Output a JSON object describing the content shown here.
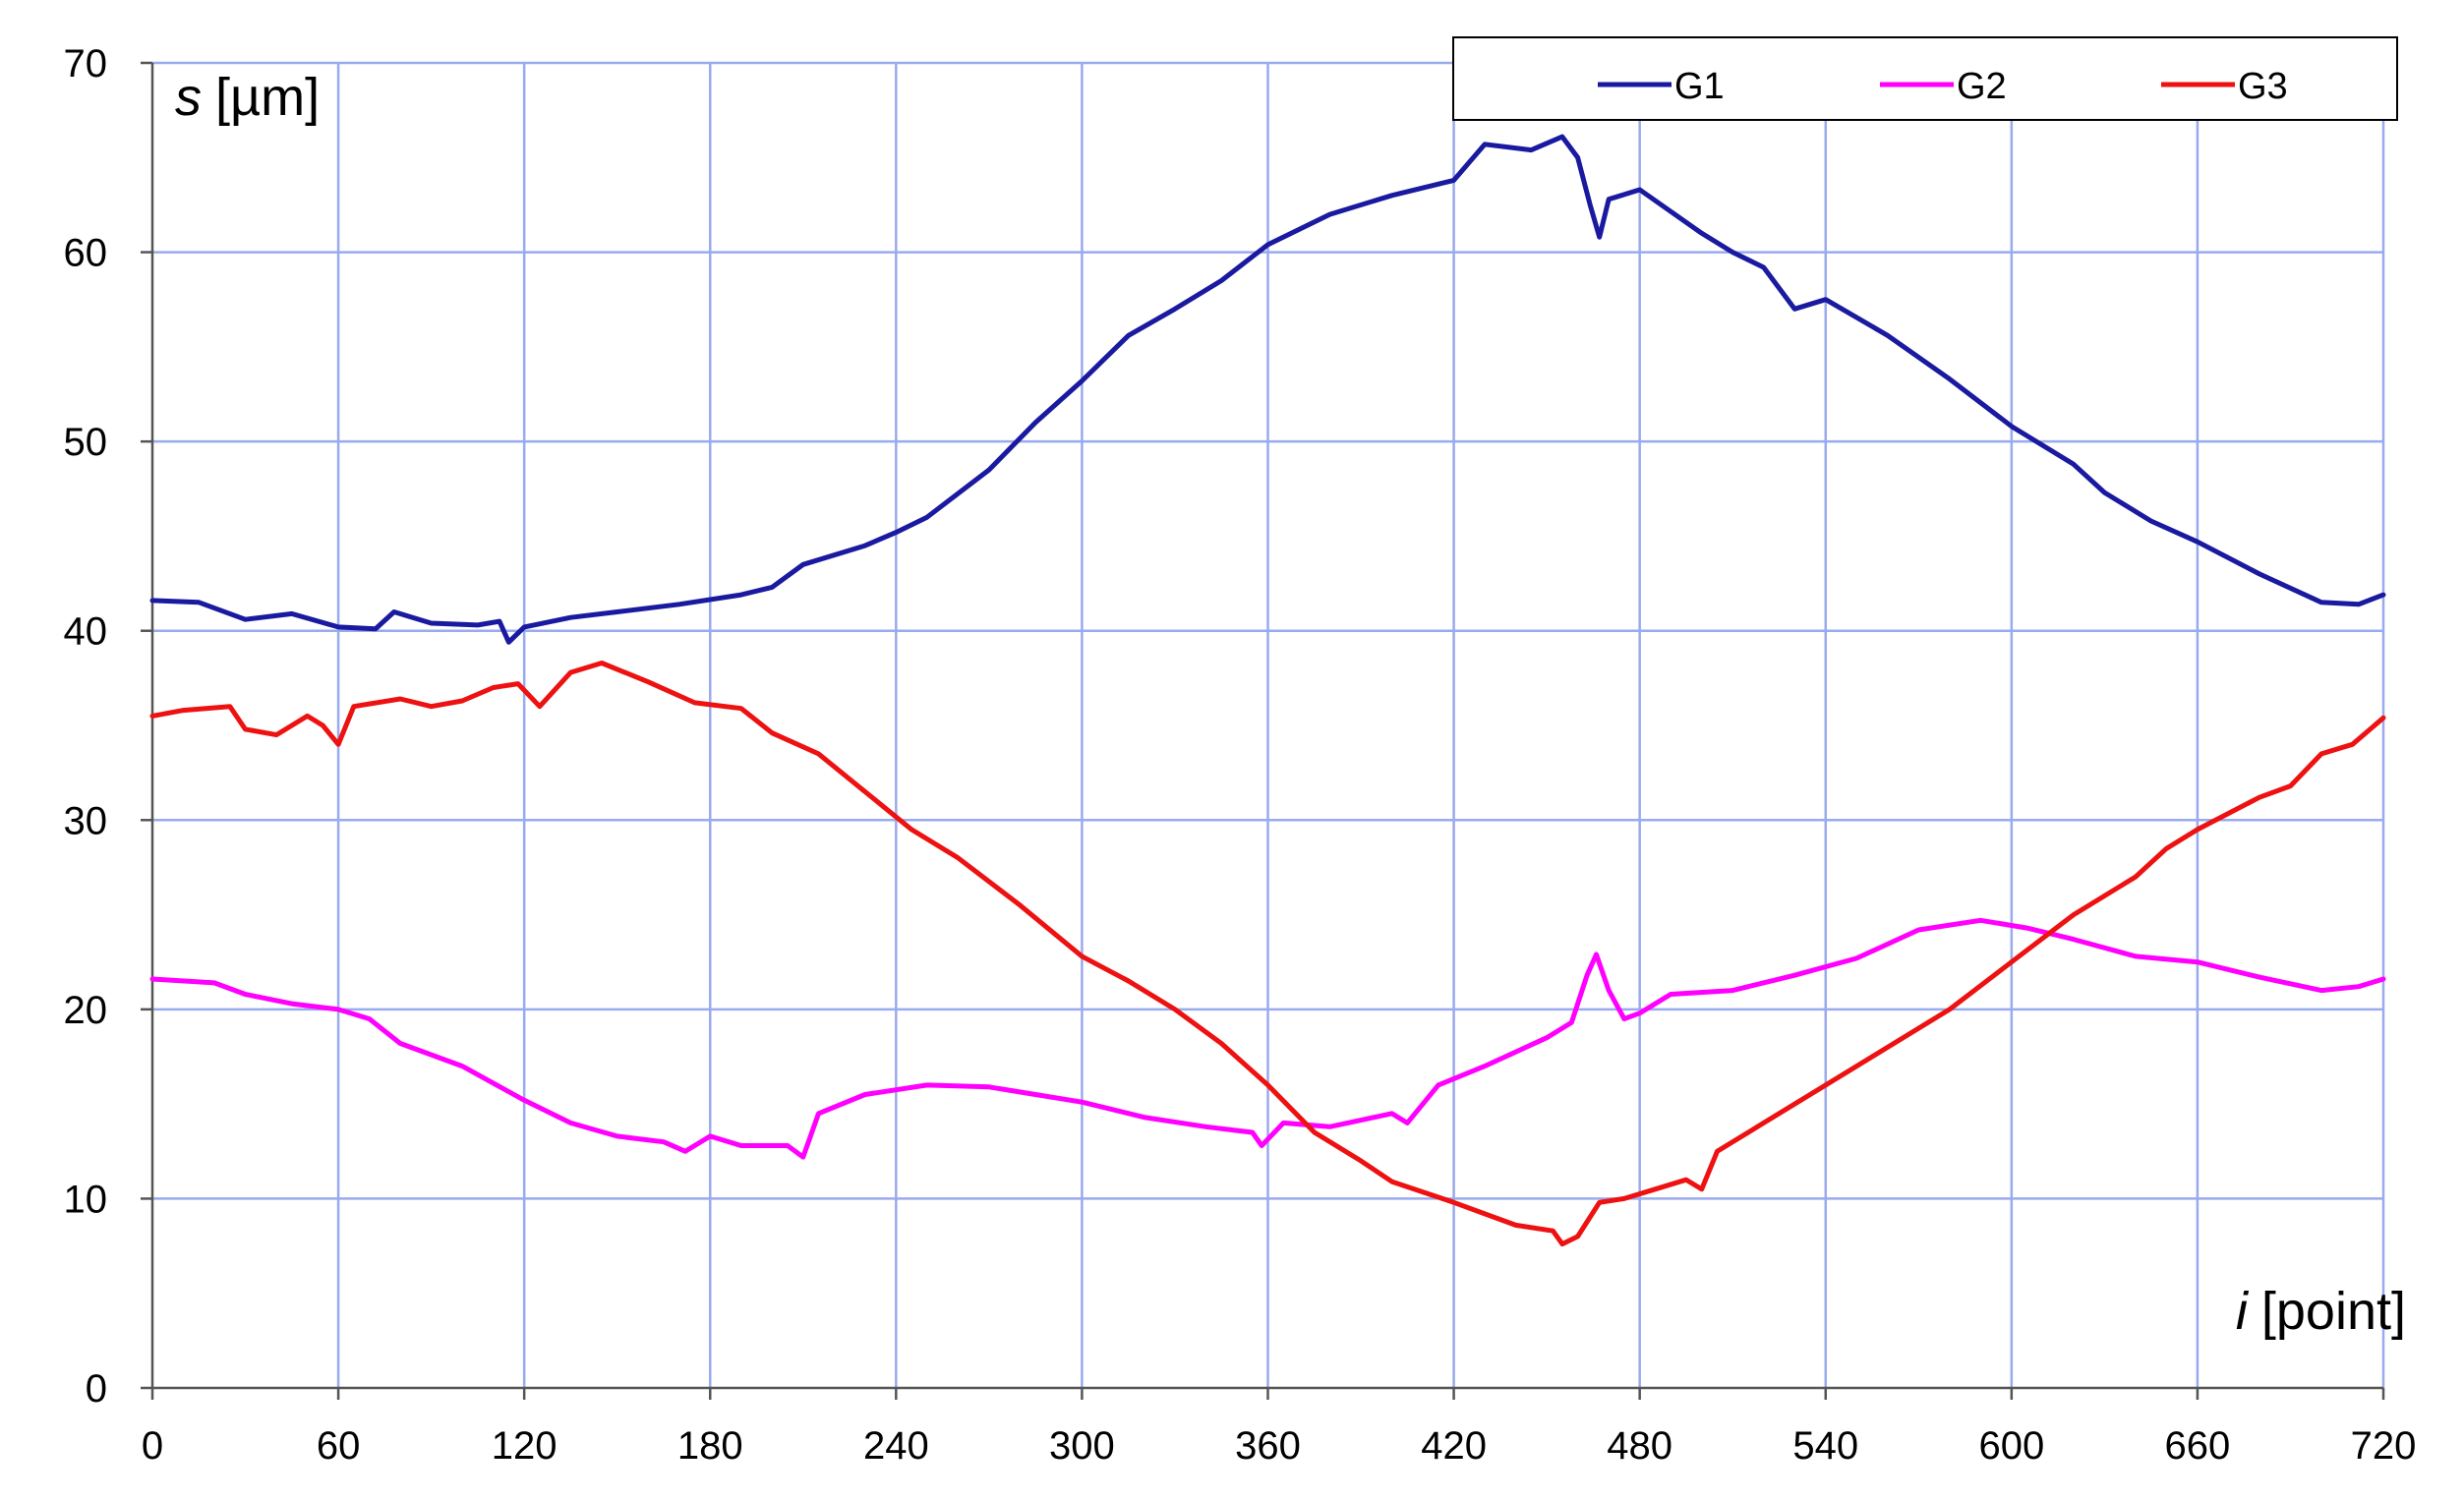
{
  "chart_data": {
    "type": "line",
    "ylabel_var": "s",
    "ylabel_unit": "[µm]",
    "xlabel_var": "i",
    "xlabel_unit": "[point]",
    "xlim": [
      0,
      720
    ],
    "ylim": [
      0,
      70
    ],
    "xticks": [
      0,
      60,
      120,
      180,
      240,
      300,
      360,
      420,
      480,
      540,
      600,
      660,
      720
    ],
    "yticks": [
      0,
      10,
      20,
      30,
      40,
      50,
      60,
      70
    ],
    "grid": true,
    "grid_color": "#99aaee",
    "legend_position": "top-right",
    "series": [
      {
        "name": "G1",
        "color": "#1a1aa0",
        "points": [
          [
            0,
            41.6
          ],
          [
            15,
            41.5
          ],
          [
            30,
            40.6
          ],
          [
            45,
            40.9
          ],
          [
            60,
            40.2
          ],
          [
            72,
            40.1
          ],
          [
            78,
            41.0
          ],
          [
            90,
            40.4
          ],
          [
            105,
            40.3
          ],
          [
            112,
            40.5
          ],
          [
            115,
            39.4
          ],
          [
            120,
            40.2
          ],
          [
            135,
            40.7
          ],
          [
            150,
            41.0
          ],
          [
            170,
            41.4
          ],
          [
            190,
            41.9
          ],
          [
            200,
            42.3
          ],
          [
            210,
            43.5
          ],
          [
            230,
            44.5
          ],
          [
            240,
            45.2
          ],
          [
            250,
            46.0
          ],
          [
            270,
            48.5
          ],
          [
            285,
            51.0
          ],
          [
            300,
            53.2
          ],
          [
            315,
            55.6
          ],
          [
            330,
            57.0
          ],
          [
            345,
            58.5
          ],
          [
            360,
            60.4
          ],
          [
            380,
            62.0
          ],
          [
            400,
            63.0
          ],
          [
            420,
            63.8
          ],
          [
            430,
            65.7
          ],
          [
            445,
            65.4
          ],
          [
            455,
            66.1
          ],
          [
            460,
            65.0
          ],
          [
            464,
            62.5
          ],
          [
            467,
            60.8
          ],
          [
            470,
            62.8
          ],
          [
            480,
            63.3
          ],
          [
            500,
            61.0
          ],
          [
            510,
            60.0
          ],
          [
            520,
            59.2
          ],
          [
            530,
            57.0
          ],
          [
            540,
            57.5
          ],
          [
            560,
            55.6
          ],
          [
            580,
            53.3
          ],
          [
            600,
            50.8
          ],
          [
            620,
            48.8
          ],
          [
            630,
            47.3
          ],
          [
            645,
            45.8
          ],
          [
            660,
            44.7
          ],
          [
            680,
            43.0
          ],
          [
            700,
            41.5
          ],
          [
            712,
            41.4
          ],
          [
            720,
            41.9
          ]
        ]
      },
      {
        "name": "G2",
        "color": "#ff00ff",
        "points": [
          [
            0,
            21.6
          ],
          [
            20,
            21.4
          ],
          [
            30,
            20.8
          ],
          [
            45,
            20.3
          ],
          [
            60,
            20.0
          ],
          [
            70,
            19.5
          ],
          [
            80,
            18.2
          ],
          [
            100,
            17.0
          ],
          [
            120,
            15.2
          ],
          [
            135,
            14.0
          ],
          [
            150,
            13.3
          ],
          [
            165,
            13.0
          ],
          [
            172,
            12.5
          ],
          [
            180,
            13.3
          ],
          [
            190,
            12.8
          ],
          [
            205,
            12.8
          ],
          [
            210,
            12.2
          ],
          [
            215,
            14.5
          ],
          [
            230,
            15.5
          ],
          [
            250,
            16.0
          ],
          [
            270,
            15.9
          ],
          [
            285,
            15.5
          ],
          [
            300,
            15.1
          ],
          [
            320,
            14.3
          ],
          [
            340,
            13.8
          ],
          [
            355,
            13.5
          ],
          [
            358,
            12.8
          ],
          [
            365,
            14.0
          ],
          [
            380,
            13.8
          ],
          [
            400,
            14.5
          ],
          [
            405,
            14.0
          ],
          [
            415,
            16.0
          ],
          [
            430,
            17.0
          ],
          [
            450,
            18.5
          ],
          [
            458,
            19.3
          ],
          [
            463,
            21.8
          ],
          [
            466,
            22.9
          ],
          [
            470,
            21.0
          ],
          [
            475,
            19.5
          ],
          [
            480,
            19.8
          ],
          [
            490,
            20.8
          ],
          [
            510,
            21.0
          ],
          [
            530,
            21.8
          ],
          [
            550,
            22.7
          ],
          [
            570,
            24.2
          ],
          [
            590,
            24.7
          ],
          [
            605,
            24.3
          ],
          [
            620,
            23.7
          ],
          [
            640,
            22.8
          ],
          [
            660,
            22.5
          ],
          [
            680,
            21.7
          ],
          [
            700,
            21.0
          ],
          [
            712,
            21.2
          ],
          [
            720,
            21.6
          ]
        ]
      },
      {
        "name": "G3",
        "color": "#ee1111",
        "points": [
          [
            0,
            35.5
          ],
          [
            10,
            35.8
          ],
          [
            25,
            36.0
          ],
          [
            30,
            34.8
          ],
          [
            40,
            34.5
          ],
          [
            50,
            35.5
          ],
          [
            55,
            35.0
          ],
          [
            60,
            34.0
          ],
          [
            65,
            36.0
          ],
          [
            80,
            36.4
          ],
          [
            90,
            36.0
          ],
          [
            100,
            36.3
          ],
          [
            110,
            37.0
          ],
          [
            118,
            37.2
          ],
          [
            125,
            36.0
          ],
          [
            135,
            37.8
          ],
          [
            145,
            38.3
          ],
          [
            160,
            37.3
          ],
          [
            175,
            36.2
          ],
          [
            190,
            35.9
          ],
          [
            200,
            34.6
          ],
          [
            215,
            33.5
          ],
          [
            230,
            31.5
          ],
          [
            245,
            29.5
          ],
          [
            260,
            28.0
          ],
          [
            280,
            25.5
          ],
          [
            300,
            22.8
          ],
          [
            315,
            21.5
          ],
          [
            330,
            20.0
          ],
          [
            345,
            18.2
          ],
          [
            360,
            16.0
          ],
          [
            375,
            13.5
          ],
          [
            390,
            12.0
          ],
          [
            400,
            10.9
          ],
          [
            420,
            9.8
          ],
          [
            440,
            8.6
          ],
          [
            452,
            8.3
          ],
          [
            455,
            7.6
          ],
          [
            460,
            8.0
          ],
          [
            467,
            9.8
          ],
          [
            475,
            10.0
          ],
          [
            485,
            10.5
          ],
          [
            495,
            11.0
          ],
          [
            500,
            10.5
          ],
          [
            505,
            12.5
          ],
          [
            520,
            14.0
          ],
          [
            540,
            16.0
          ],
          [
            560,
            18.0
          ],
          [
            580,
            20.0
          ],
          [
            600,
            22.5
          ],
          [
            620,
            25.0
          ],
          [
            640,
            27.0
          ],
          [
            650,
            28.5
          ],
          [
            660,
            29.5
          ],
          [
            680,
            31.2
          ],
          [
            690,
            31.8
          ],
          [
            700,
            33.5
          ],
          [
            710,
            34.0
          ],
          [
            720,
            35.4
          ]
        ]
      }
    ]
  }
}
